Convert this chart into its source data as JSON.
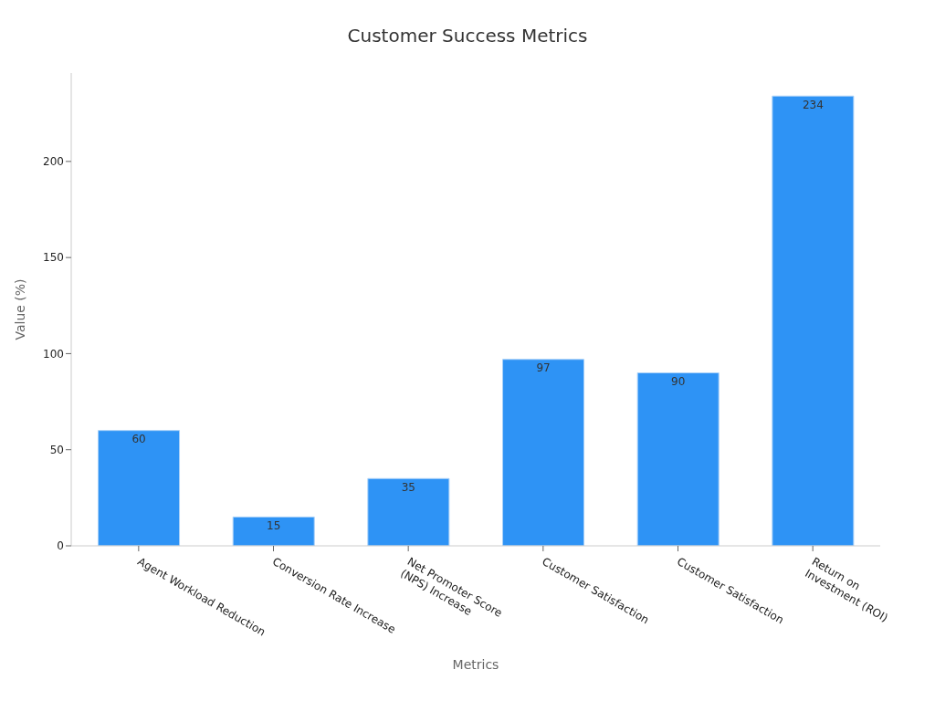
{
  "chart_data": {
    "type": "bar",
    "title": "Customer Success Metrics",
    "xlabel": "Metrics",
    "ylabel": "Value (%)",
    "categories": [
      "Agent Workload Reduction",
      "Conversion Rate Increase",
      "Net Promoter Score (NPS) Increase",
      "Customer Satisfaction",
      "Customer Satisfaction",
      "Return on Investment (ROI)"
    ],
    "values": [
      60,
      15,
      35,
      97,
      90,
      234
    ],
    "color": "#2e93f5",
    "ylim": [
      0,
      246
    ],
    "yticks": [
      0,
      50,
      100,
      150,
      200
    ],
    "grid": false,
    "data_labels": true
  }
}
